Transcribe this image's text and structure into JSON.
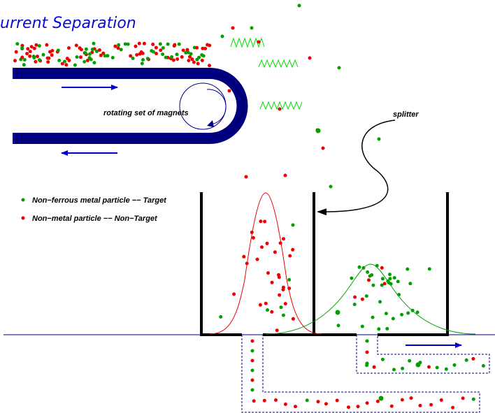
{
  "title": "urrent Separation",
  "labels": {
    "magnets": "rotating set of magnets",
    "splitter": "splitter",
    "legend_target": "Non−ferrous metal particle −− Target",
    "legend_nontarget": "Non−metal particle −− Non−Target"
  },
  "colors": {
    "belt": "#00007e",
    "target": "#00a000",
    "non_target": "#ee0000",
    "field": "#00dd00",
    "bin": "#000000",
    "flow_arrow": "#0000cc"
  },
  "icons": [
    "magnet-rotation-arrow-icon",
    "belt-direction-arrow-icon",
    "splitter-pointer-arrow-icon",
    "conveyor-direction-arrow-icon"
  ]
}
